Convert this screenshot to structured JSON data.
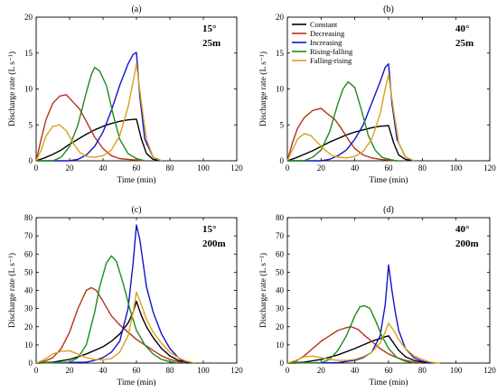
{
  "colors": {
    "Constant": "#000000",
    "Decreasing": "#b5311c",
    "Increasing": "#1212cc",
    "Rising-falling": "#1f8a1f",
    "Falling-rising": "#d9a21b"
  },
  "chart_data": [
    {
      "type": "line",
      "panel_label": "(a)",
      "annotation": [
        "15°",
        "25m"
      ],
      "xlabel": "Time (min)",
      "ylabel": "Discharge rate (L s⁻¹)",
      "xlim": [
        0,
        120
      ],
      "ylim": [
        0,
        20
      ],
      "xticks": [
        0,
        20,
        40,
        60,
        80,
        100,
        120
      ],
      "yticks": [
        0,
        5,
        10,
        15,
        20
      ],
      "legend": null,
      "series": [
        {
          "name": "Constant",
          "x": [
            0,
            5,
            10,
            15,
            20,
            25,
            30,
            35,
            40,
            45,
            50,
            55,
            60,
            63,
            66,
            70,
            75
          ],
          "y": [
            0,
            0.4,
            0.9,
            1.5,
            2.3,
            3.0,
            3.7,
            4.3,
            4.8,
            5.2,
            5.5,
            5.7,
            5.8,
            3.0,
            1.0,
            0.2,
            0
          ]
        },
        {
          "name": "Decreasing",
          "x": [
            0,
            3,
            6,
            10,
            14,
            18,
            22,
            26,
            30,
            35,
            40,
            45,
            50,
            55,
            60,
            65
          ],
          "y": [
            0,
            3,
            5.8,
            8,
            9,
            9.2,
            8.2,
            7.2,
            5.5,
            3.3,
            1.7,
            0.7,
            0.3,
            0.2,
            0.1,
            0
          ]
        },
        {
          "name": "Increasing",
          "x": [
            0,
            20,
            25,
            30,
            35,
            40,
            45,
            50,
            55,
            58,
            60,
            62,
            65,
            70,
            75
          ],
          "y": [
            0,
            0,
            0.2,
            0.8,
            2.0,
            4.0,
            7.0,
            10.5,
            13.5,
            14.8,
            15.1,
            9,
            3,
            0.5,
            0
          ]
        },
        {
          "name": "Rising-falling",
          "x": [
            0,
            10,
            15,
            20,
            25,
            30,
            33,
            35,
            38,
            42,
            46,
            50,
            55,
            60,
            65
          ],
          "y": [
            0,
            0,
            0.5,
            2.0,
            5.0,
            9.5,
            12.0,
            13.0,
            12.5,
            10.5,
            6.5,
            3.0,
            1.0,
            0.3,
            0
          ]
        },
        {
          "name": "Falling-rising",
          "x": [
            0,
            3,
            6,
            10,
            14,
            18,
            22,
            26,
            30,
            35,
            40,
            45,
            50,
            55,
            58,
            60,
            63,
            66,
            70,
            75
          ],
          "y": [
            0,
            1.5,
            3.5,
            4.8,
            5.0,
            4.2,
            2.5,
            1.2,
            0.6,
            0.5,
            0.7,
            1.5,
            3.5,
            7.5,
            11,
            13.5,
            8,
            3,
            0.5,
            0
          ]
        }
      ]
    },
    {
      "type": "line",
      "panel_label": "(b)",
      "annotation": [
        "40°",
        "25m"
      ],
      "xlabel": "Time (min)",
      "ylabel": "Discharge rate (L s⁻¹)",
      "xlim": [
        0,
        120
      ],
      "ylim": [
        0,
        20
      ],
      "xticks": [
        0,
        20,
        40,
        60,
        80,
        100,
        120
      ],
      "yticks": [
        0,
        5,
        10,
        15,
        20
      ],
      "legend": [
        "Constant",
        "Decreasing",
        "Increasing",
        "Rising-falling",
        "Falling-rising"
      ],
      "series": [
        {
          "name": "Constant",
          "x": [
            0,
            5,
            10,
            15,
            20,
            25,
            30,
            35,
            40,
            45,
            50,
            55,
            60,
            63,
            66,
            70,
            75
          ],
          "y": [
            0,
            0.4,
            0.9,
            1.4,
            2.0,
            2.6,
            3.1,
            3.6,
            4.0,
            4.3,
            4.6,
            4.8,
            4.9,
            2.5,
            0.8,
            0.2,
            0
          ]
        },
        {
          "name": "Decreasing",
          "x": [
            0,
            3,
            6,
            10,
            15,
            20,
            24,
            28,
            32,
            36,
            40,
            45,
            50,
            55,
            60,
            65
          ],
          "y": [
            0,
            2.5,
            4.5,
            6.0,
            7.0,
            7.3,
            6.5,
            5.8,
            4.5,
            3.0,
            1.7,
            0.8,
            0.4,
            0.2,
            0.1,
            0
          ]
        },
        {
          "name": "Increasing",
          "x": [
            0,
            20,
            25,
            30,
            35,
            40,
            45,
            50,
            55,
            58,
            60,
            62,
            65,
            70,
            75
          ],
          "y": [
            0,
            0,
            0.2,
            0.7,
            1.5,
            3.0,
            5.0,
            8.0,
            11.0,
            13.0,
            13.5,
            8,
            3,
            0.5,
            0
          ]
        },
        {
          "name": "Rising-falling",
          "x": [
            0,
            10,
            15,
            20,
            25,
            30,
            33,
            36,
            40,
            44,
            48,
            52,
            56,
            60,
            65
          ],
          "y": [
            0,
            0,
            0.5,
            1.5,
            4.0,
            8.0,
            10.0,
            11.0,
            10.2,
            7.0,
            3.5,
            1.5,
            0.5,
            0.2,
            0
          ]
        },
        {
          "name": "Falling-rising",
          "x": [
            0,
            3,
            6,
            10,
            14,
            18,
            22,
            26,
            30,
            35,
            40,
            45,
            50,
            55,
            58,
            60,
            63,
            66,
            70,
            75
          ],
          "y": [
            0,
            1.5,
            3.0,
            3.8,
            3.5,
            2.5,
            1.6,
            0.8,
            0.5,
            0.4,
            0.6,
            1.3,
            3.0,
            6.5,
            10.0,
            12.0,
            7,
            2.5,
            0.5,
            0
          ]
        }
      ]
    },
    {
      "type": "line",
      "panel_label": "(c)",
      "annotation": [
        "15°",
        "200m"
      ],
      "xlabel": "Time (min)",
      "ylabel": "Discharge rate (L s⁻¹)",
      "xlim": [
        0,
        120
      ],
      "ylim": [
        0,
        80
      ],
      "xticks": [
        0,
        20,
        40,
        60,
        80,
        100,
        120
      ],
      "yticks": [
        0,
        10,
        20,
        30,
        40,
        50,
        60,
        70,
        80
      ],
      "legend": null,
      "series": [
        {
          "name": "Constant",
          "x": [
            0,
            10,
            20,
            30,
            40,
            45,
            50,
            55,
            58,
            60,
            63,
            66,
            70,
            75,
            80,
            85,
            90,
            95
          ],
          "y": [
            0,
            0.5,
            2,
            5,
            9,
            12,
            16,
            22,
            28,
            34,
            26,
            20,
            14,
            8,
            4,
            1.5,
            0.5,
            0
          ]
        },
        {
          "name": "Decreasing",
          "x": [
            0,
            5,
            10,
            15,
            20,
            25,
            30,
            33,
            36,
            40,
            45,
            50,
            55,
            60,
            65,
            70,
            75,
            80,
            85,
            90
          ],
          "y": [
            0,
            1,
            3,
            8,
            17,
            30,
            40,
            41.5,
            40,
            34,
            26,
            21,
            17,
            13,
            10,
            7,
            4,
            2,
            0.8,
            0
          ]
        },
        {
          "name": "Increasing",
          "x": [
            0,
            30,
            35,
            40,
            45,
            50,
            55,
            58,
            60,
            62,
            64,
            66,
            70,
            75,
            80,
            85,
            90
          ],
          "y": [
            0,
            0.5,
            1.5,
            3,
            6,
            12,
            30,
            55,
            76,
            68,
            55,
            42,
            28,
            16,
            8,
            3,
            0
          ]
        },
        {
          "name": "Rising-falling",
          "x": [
            0,
            20,
            25,
            30,
            35,
            38,
            42,
            45,
            48,
            52,
            56,
            60,
            65,
            70,
            75,
            80,
            85
          ],
          "y": [
            0,
            0.5,
            3,
            10,
            28,
            42,
            55,
            59,
            56,
            44,
            30,
            18,
            10,
            5,
            2,
            0.8,
            0
          ]
        },
        {
          "name": "Falling-rising",
          "x": [
            0,
            5,
            10,
            15,
            20,
            25,
            30,
            35,
            40,
            45,
            50,
            55,
            58,
            60,
            63,
            66,
            70,
            75,
            80,
            85,
            90,
            95
          ],
          "y": [
            0,
            2,
            5,
            6.5,
            6.8,
            5,
            3,
            2,
            1.8,
            2.5,
            6,
            15,
            28,
            39,
            32,
            24,
            17,
            11,
            6,
            3,
            1,
            0
          ]
        }
      ]
    },
    {
      "type": "line",
      "panel_label": "(d)",
      "annotation": [
        "40°",
        "200m"
      ],
      "xlabel": "Time (min)",
      "ylabel": "Discharge rate (L s⁻¹)",
      "xlim": [
        0,
        120
      ],
      "ylim": [
        0,
        80
      ],
      "xticks": [
        0,
        20,
        40,
        60,
        80,
        100,
        120
      ],
      "yticks": [
        0,
        10,
        20,
        30,
        40,
        50,
        60,
        70,
        80
      ],
      "legend": null,
      "series": [
        {
          "name": "Constant",
          "x": [
            0,
            10,
            20,
            30,
            40,
            45,
            50,
            55,
            58,
            60,
            63,
            66,
            70,
            75,
            80,
            85
          ],
          "y": [
            0,
            0.5,
            2,
            4.5,
            8,
            10,
            12,
            13.5,
            14.5,
            15,
            11,
            7,
            3.5,
            1.5,
            0.5,
            0
          ]
        },
        {
          "name": "Decreasing",
          "x": [
            0,
            5,
            10,
            15,
            20,
            25,
            30,
            35,
            38,
            42,
            46,
            50,
            55,
            60,
            65,
            70,
            75,
            80
          ],
          "y": [
            0,
            1,
            4,
            8,
            12,
            15,
            18,
            19.5,
            20,
            18.5,
            15,
            12,
            8,
            5,
            3,
            1.5,
            0.5,
            0
          ]
        },
        {
          "name": "Increasing",
          "x": [
            0,
            30,
            40,
            45,
            50,
            55,
            58,
            60,
            62,
            64,
            66,
            70,
            75,
            80,
            85
          ],
          "y": [
            0,
            0.3,
            1.5,
            3,
            6,
            15,
            32,
            54,
            40,
            28,
            18,
            8,
            3,
            1,
            0
          ]
        },
        {
          "name": "Rising-falling",
          "x": [
            0,
            20,
            25,
            30,
            35,
            40,
            43,
            46,
            49,
            52,
            56,
            60,
            65,
            70,
            75
          ],
          "y": [
            0,
            0.3,
            2,
            7,
            15,
            26,
            31,
            31.5,
            30,
            24,
            15,
            8,
            3,
            1,
            0
          ]
        },
        {
          "name": "Falling-rising",
          "x": [
            0,
            5,
            10,
            15,
            20,
            25,
            30,
            35,
            40,
            45,
            50,
            55,
            58,
            60,
            63,
            66,
            70,
            75,
            80,
            85,
            90
          ],
          "y": [
            0,
            1.5,
            3.5,
            3.8,
            3,
            2,
            1.5,
            1.5,
            2,
            3.5,
            6,
            11,
            17,
            22,
            18,
            13,
            8,
            4,
            2,
            0.5,
            0
          ]
        }
      ]
    }
  ]
}
